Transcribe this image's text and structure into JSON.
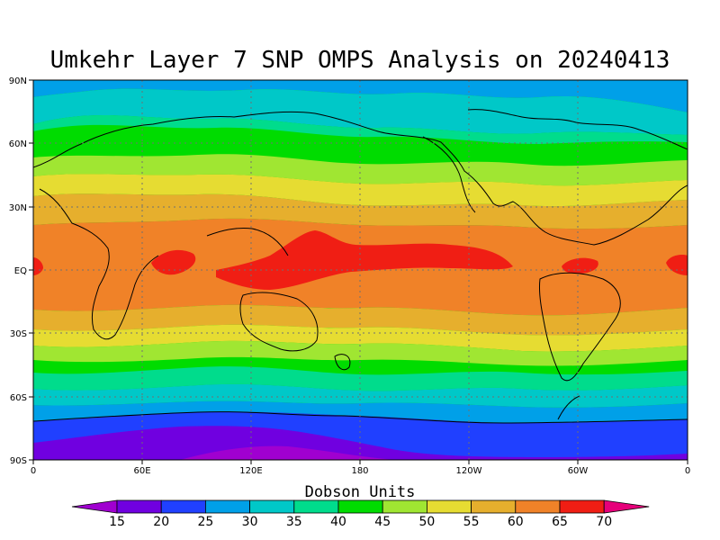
{
  "title": "Umkehr Layer 7 SNP OMPS Analysis on 20240413",
  "colorbar": {
    "title": "Dobson Units",
    "levels": [
      "15",
      "20",
      "25",
      "30",
      "35",
      "40",
      "45",
      "50",
      "55",
      "60",
      "65",
      "70"
    ],
    "colors": [
      "#a000d0",
      "#7000e0",
      "#2040ff",
      "#00a0e8",
      "#00c8c8",
      "#00dc8c",
      "#00dc00",
      "#a0e632",
      "#e6dc32",
      "#e6af2d",
      "#f08228",
      "#f01e14",
      "#e6007a"
    ]
  },
  "axes": {
    "x_ticks": [
      "0",
      "60E",
      "120E",
      "180",
      "120W",
      "60W",
      "0"
    ],
    "y_ticks": [
      "90N",
      "60N",
      "30N",
      "EQ",
      "30S",
      "60S",
      "90S"
    ]
  },
  "chart_data": {
    "type": "heatmap",
    "title": "Umkehr Layer 7 SNP OMPS Analysis on 20240413",
    "colorbar_label": "Dobson Units",
    "x_range": [
      "0",
      "0"
    ],
    "y_range": [
      "90S",
      "90N"
    ],
    "contour_levels": [
      15,
      20,
      25,
      30,
      35,
      40,
      45,
      50,
      55,
      60,
      65,
      70
    ],
    "zonal_mean_approx": [
      {
        "lat": 90,
        "du": 30
      },
      {
        "lat": 75,
        "du": 33
      },
      {
        "lat": 65,
        "du": 43
      },
      {
        "lat": 55,
        "du": 48
      },
      {
        "lat": 45,
        "du": 53
      },
      {
        "lat": 35,
        "du": 58
      },
      {
        "lat": 20,
        "du": 63
      },
      {
        "lat": 0,
        "du": 66
      },
      {
        "lat": -20,
        "du": 63
      },
      {
        "lat": -30,
        "du": 58
      },
      {
        "lat": -40,
        "du": 52
      },
      {
        "lat": -50,
        "du": 45
      },
      {
        "lat": -60,
        "du": 33
      },
      {
        "lat": -70,
        "du": 27
      },
      {
        "lat": -80,
        "du": 22
      },
      {
        "lat": -90,
        "du": 18
      }
    ],
    "grid": true
  }
}
